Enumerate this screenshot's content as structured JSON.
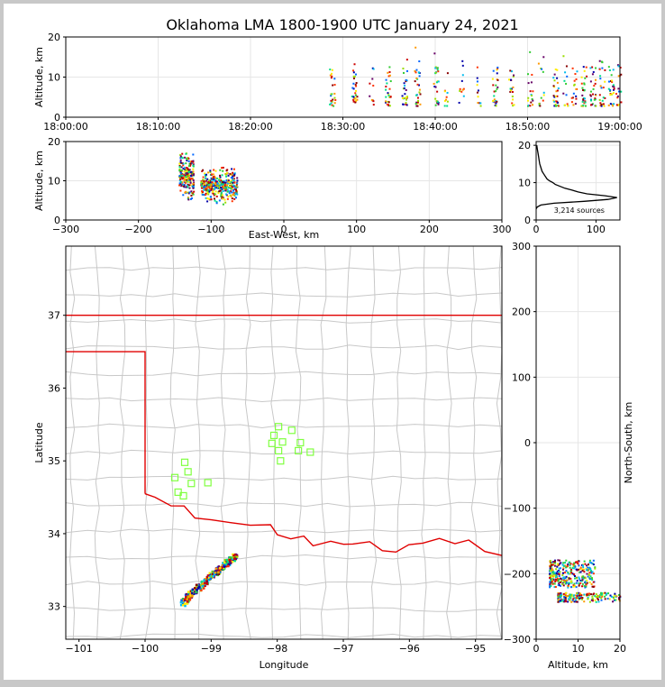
{
  "title": "Oklahoma LMA 1800-1900 UTC January 24, 2021",
  "colors": {
    "axis": "#000000",
    "grid": "#e6e6e6",
    "county": "#c8c8c8",
    "state": "#e00000",
    "station": "#80ff40",
    "profile": "#000000"
  },
  "chart_data": [
    {
      "id": "time-height",
      "type": "scatter",
      "ylabel": "Altitude, km",
      "xlim": [
        0,
        60
      ],
      "ylim": [
        0,
        20
      ],
      "xticks": [
        {
          "v": 0,
          "label": "18:00:00"
        },
        {
          "v": 10,
          "label": "18:10:00"
        },
        {
          "v": 20,
          "label": "18:20:00"
        },
        {
          "v": 30,
          "label": "18:30:00"
        },
        {
          "v": 40,
          "label": "18:40:00"
        },
        {
          "v": 50,
          "label": "18:50:00"
        },
        {
          "v": 60,
          "label": "19:00:00"
        }
      ],
      "yticks": [
        0,
        10,
        20
      ],
      "active_minutes": [
        28.8,
        31.2,
        33.0,
        34.8,
        36.6,
        38.0,
        40.0,
        41.2,
        42.8,
        44.6,
        46.4,
        48.2,
        50.2,
        51.4,
        53.0,
        54.0,
        55.0,
        56.0,
        57.0,
        58.0,
        59.0,
        59.8
      ],
      "altitude_range_km": [
        3,
        19
      ]
    },
    {
      "id": "ew-height",
      "type": "scatter",
      "xlabel": "East-West, km",
      "ylabel": "Altitude, km",
      "xlim": [
        -300,
        300
      ],
      "ylim": [
        0,
        20
      ],
      "xticks": [
        -300,
        -200,
        -100,
        0,
        100,
        200,
        300
      ],
      "yticks": [
        0,
        10,
        20
      ],
      "clusters": [
        {
          "x": [
            -145,
            -125
          ],
          "y": [
            5,
            18
          ]
        },
        {
          "x": [
            -115,
            -65
          ],
          "y": [
            4,
            14
          ]
        }
      ]
    },
    {
      "id": "altitude-histogram",
      "type": "line",
      "xlim": [
        0,
        140
      ],
      "ylim": [
        0,
        21
      ],
      "xticks": [
        0,
        100
      ],
      "yticks": [
        0,
        10,
        20
      ],
      "annotation": "3,214 sources",
      "profile": [
        [
          0,
          3
        ],
        [
          2,
          3.5
        ],
        [
          8,
          4
        ],
        [
          30,
          4.5
        ],
        [
          80,
          5
        ],
        [
          120,
          5.5
        ],
        [
          135,
          6
        ],
        [
          115,
          6.5
        ],
        [
          85,
          7
        ],
        [
          70,
          7.5
        ],
        [
          60,
          8
        ],
        [
          48,
          8.5
        ],
        [
          40,
          9
        ],
        [
          32,
          9.5
        ],
        [
          28,
          10
        ],
        [
          22,
          10.5
        ],
        [
          18,
          11
        ],
        [
          14,
          12
        ],
        [
          10,
          13
        ],
        [
          8,
          14
        ],
        [
          6,
          15
        ],
        [
          5,
          16
        ],
        [
          4,
          17
        ],
        [
          3,
          18
        ],
        [
          2,
          19
        ],
        [
          1,
          20
        ]
      ]
    },
    {
      "id": "plan-map",
      "type": "scatter",
      "xlabel": "Longitude",
      "ylabel": "Latitude",
      "xlim": [
        -101.2,
        -94.6
      ],
      "ylim": [
        32.55,
        37.95
      ],
      "xticks": [
        -101,
        -100,
        -99,
        -98,
        -97,
        -96,
        -95
      ],
      "yticks": [
        33,
        34,
        35,
        36,
        37
      ],
      "stations": [
        [
          -97.98,
          35.47
        ],
        [
          -97.78,
          35.42
        ],
        [
          -98.05,
          35.35
        ],
        [
          -97.92,
          35.26
        ],
        [
          -98.08,
          35.24
        ],
        [
          -97.65,
          35.25
        ],
        [
          -97.98,
          35.14
        ],
        [
          -97.68,
          35.14
        ],
        [
          -97.5,
          35.12
        ],
        [
          -97.95,
          35.0
        ],
        [
          -99.4,
          34.98
        ],
        [
          -99.35,
          34.85
        ],
        [
          -99.55,
          34.77
        ],
        [
          -99.3,
          34.69
        ],
        [
          -99.05,
          34.7
        ],
        [
          -99.5,
          34.57
        ],
        [
          -99.42,
          34.52
        ]
      ],
      "flash_path": [
        [
          -99.45,
          33.05
        ],
        [
          -99.3,
          33.2
        ],
        [
          -99.1,
          33.35
        ],
        [
          -98.95,
          33.48
        ],
        [
          -98.8,
          33.6
        ],
        [
          -98.65,
          33.7
        ]
      ]
    },
    {
      "id": "ns-height",
      "type": "scatter",
      "xlabel": "Altitude, km",
      "ylabel": "North-South, km",
      "xlim": [
        0,
        20
      ],
      "ylim": [
        -300,
        300
      ],
      "xticks": [
        0,
        10,
        20
      ],
      "yticks": [
        -300,
        -200,
        -100,
        0,
        100,
        200,
        300
      ],
      "clusters": [
        {
          "x": [
            3,
            14
          ],
          "y": [
            -220,
            -178
          ]
        },
        {
          "x": [
            5,
            20
          ],
          "y": [
            -242,
            -228
          ]
        }
      ]
    }
  ]
}
